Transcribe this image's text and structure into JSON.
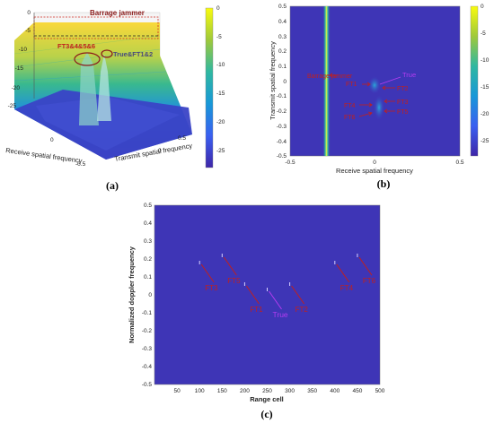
{
  "chart_data": [
    {
      "panel": "(a)",
      "type": "surface",
      "zticks": [
        "0",
        "-5",
        "-10",
        "-15",
        "-20",
        "-25"
      ],
      "xlabel": "Receive spatial frequency",
      "ylabel": "Transmit spatial frequency",
      "xticks": [
        "-0.5",
        "0"
      ],
      "yticks": [
        "0",
        "0.5"
      ],
      "colorbar": {
        "ticks": [
          "0",
          "-5",
          "-10",
          "-15",
          "-20",
          "-25"
        ],
        "range": [
          -28,
          0
        ]
      },
      "annotations": [
        {
          "text": "Barrage jammer",
          "color": "#8b1a1a"
        },
        {
          "text": "FT3&4&5&6",
          "color": "#c0201e"
        },
        {
          "text": "True&FT1&2",
          "color": "#4a4a7a"
        }
      ]
    },
    {
      "panel": "(b)",
      "type": "heatmap",
      "xlabel": "Receive spatial frequency",
      "ylabel": "Transmit spatial frequency",
      "xlim": [
        -0.5,
        0.5
      ],
      "ylim": [
        -0.5,
        0.5
      ],
      "xticks": [
        "-0.5",
        "0",
        "0.5"
      ],
      "yticks": [
        "0.5",
        "0.4",
        "0.3",
        "0.2",
        "0.1",
        "0",
        "-0.1",
        "-0.2",
        "-0.3",
        "-0.4",
        "-0.5"
      ],
      "colorbar": {
        "ticks": [
          "0",
          "-5",
          "-10",
          "-15",
          "-20",
          "-25"
        ],
        "range": [
          -28,
          0
        ]
      },
      "jammer_x": -0.3,
      "annotations": [
        {
          "text": "Barrage jammer",
          "color": "#c0201e"
        },
        {
          "text": "True",
          "color": "#b43cf0"
        },
        {
          "text": "FT1",
          "color": "#c0201e"
        },
        {
          "text": "FT2",
          "color": "#c0201e"
        },
        {
          "text": "FT3",
          "color": "#c0201e"
        },
        {
          "text": "FT4",
          "color": "#c0201e"
        },
        {
          "text": "FT5",
          "color": "#c0201e"
        },
        {
          "text": "FT6",
          "color": "#c0201e"
        }
      ]
    },
    {
      "panel": "(c)",
      "type": "scatter",
      "xlabel": "Range cell",
      "ylabel": "Normalized doppler frequency",
      "xlim": [
        0,
        500
      ],
      "ylim": [
        -0.5,
        0.5
      ],
      "xticks": [
        "50",
        "100",
        "150",
        "200",
        "250",
        "300",
        "350",
        "400",
        "450",
        "500"
      ],
      "yticks": [
        "0.5",
        "0.4",
        "0.3",
        "0.2",
        "0.1",
        "0",
        "-0.1",
        "-0.2",
        "-0.3",
        "-0.4",
        "-0.5"
      ],
      "points": [
        {
          "label": "FT3",
          "x": 100,
          "y": 0.18
        },
        {
          "label": "FT5",
          "x": 150,
          "y": 0.22
        },
        {
          "label": "FT1",
          "x": 200,
          "y": 0.06
        },
        {
          "label": "True",
          "x": 250,
          "y": 0.03
        },
        {
          "label": "FT2",
          "x": 300,
          "y": 0.06
        },
        {
          "label": "FT4",
          "x": 400,
          "y": 0.18
        },
        {
          "label": "FT6",
          "x": 450,
          "y": 0.22
        }
      ]
    }
  ]
}
